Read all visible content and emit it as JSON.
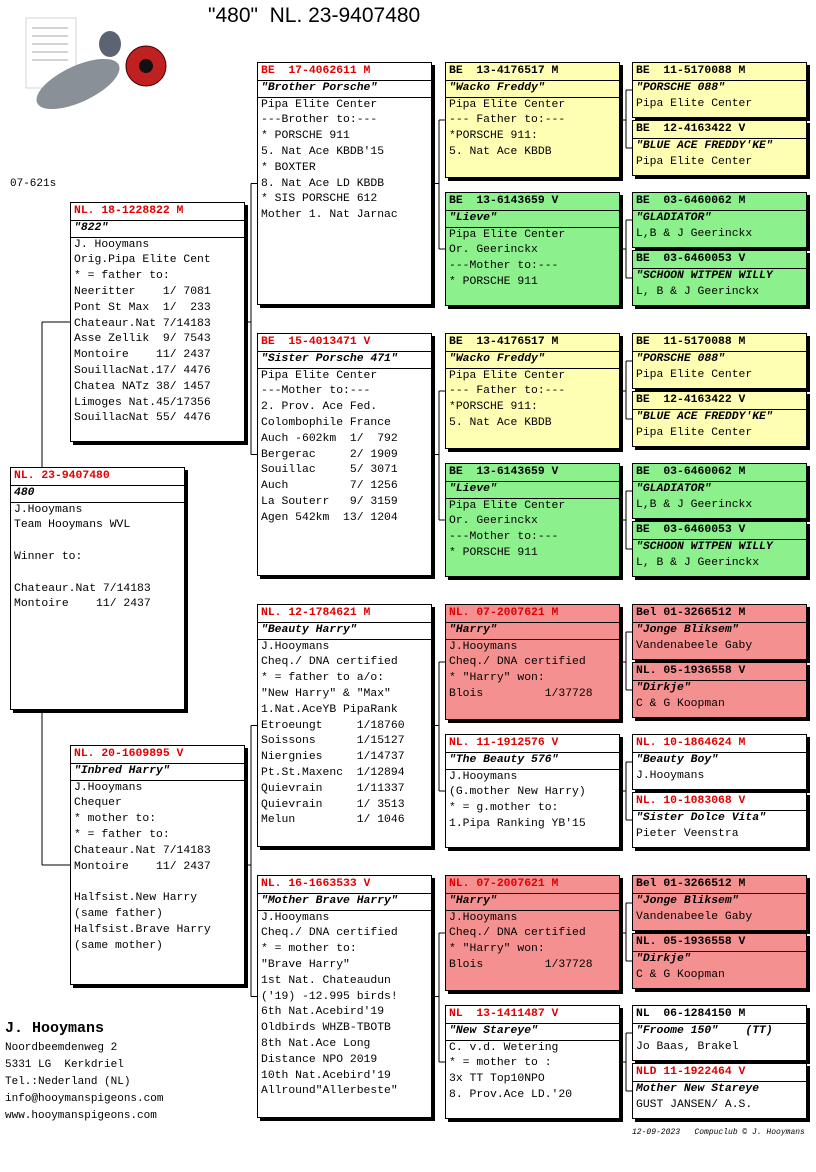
{
  "header": {
    "title": "\"480\"  NL. 23-9407480",
    "code": "07-621s"
  },
  "pedigree": {
    "subject": {
      "ring": "NL. 23-9407480",
      "header_color": "#e00000",
      "fill": "#ffffff",
      "name": "480",
      "paragraphs": [
        [
          "J.Hooymans",
          "Team Hooymans WVL"
        ],
        [
          "Winner to:"
        ],
        [
          "Chateaur.Nat 7/14183",
          "Montoire    11/ 2437"
        ]
      ]
    },
    "parents": [
      {
        "ring": "NL. 18-1228822 M",
        "header_color": "#e00000",
        "fill": "#ffffff",
        "name": "\"822\"",
        "paragraphs": [
          [
            "J. Hooymans",
            "Orig.Pipa Elite Cent",
            "* = father to:",
            "Neeritter    1/ 7081",
            "Pont St Max  1/  233",
            "Chateaur.Nat 7/14183",
            "Asse Zellik  9/ 7543",
            "Montoire    11/ 2437",
            "SouillacNat.17/ 4476",
            "Chatea NATz 38/ 1457",
            "Limoges Nat.45/17356",
            "SouillacNat 55/ 4476"
          ]
        ]
      },
      {
        "ring": "NL. 20-1609895 V",
        "header_color": "#e00000",
        "fill": "#ffffff",
        "name": "\"Inbred Harry\"",
        "paragraphs": [
          [
            "J.Hooymans",
            "Chequer",
            "* mother to:",
            "* = father to:",
            "Chateaur.Nat 7/14183",
            "Montoire    11/ 2437"
          ],
          [
            "Halfsist.New Harry",
            "(same father)",
            "Halfsist.Brave Harry",
            "(same mother)"
          ]
        ]
      }
    ],
    "grandparents": [
      {
        "ring": "BE  17-4062611 M",
        "header_color": "#e00000",
        "fill": "#ffffff",
        "name": "\"Brother Porsche\"",
        "paragraphs": [
          [
            "Pipa Elite Center",
            "---Brother to:---",
            "* PORSCHE 911",
            "5. Nat Ace KBDB'15",
            "* BOXTER",
            "8. Nat Ace LD KBDB",
            "* SIS PORSCHE 612",
            "Mother 1. Nat Jarnac"
          ]
        ]
      },
      {
        "ring": "BE  15-4013471 V",
        "header_color": "#e00000",
        "fill": "#ffffff",
        "name": "\"Sister Porsche 471\"",
        "paragraphs": [
          [
            "Pipa Elite Center",
            "---Mother to:---",
            "2. Prov. Ace Fed.",
            "Colombophile France",
            "Auch -602km  1/  792",
            "Bergerac     2/ 1909",
            "Souillac     5/ 3071",
            "Auch         7/ 1256",
            "La Souterr   9/ 3159",
            "Agen 542km  13/ 1204"
          ]
        ]
      },
      {
        "ring": "NL. 12-1784621 M",
        "header_color": "#e00000",
        "fill": "#ffffff",
        "name": "\"Beauty Harry\"",
        "paragraphs": [
          [
            "J.Hooymans",
            "Cheq./ DNA certified",
            "* = father to a/o:",
            "\"New Harry\" & \"Max\"",
            "1.Nat.AceYB PipaRank",
            "Etroeungt     1/18760",
            "Soissons      1/15127",
            "Niergnies     1/14737",
            "Pt.St.Maxenc  1/12894",
            "Quievrain     1/11337",
            "Quievrain     1/ 3513",
            "Melun         1/ 1046"
          ]
        ]
      },
      {
        "ring": "NL. 16-1663533 V",
        "header_color": "#e00000",
        "fill": "#ffffff",
        "name": "\"Mother Brave Harry\"",
        "paragraphs": [
          [
            "J.Hooymans",
            "Cheq./ DNA certified",
            "* = mother to:",
            "\"Brave Harry\"",
            "1st Nat. Chateaudun",
            "('19) -12.995 birds!",
            "6th Nat.Acebird'19",
            "Oldbirds WHZB-TBOTB",
            "8th Nat.Ace Long",
            "Distance NPO 2019",
            "10th Nat.Acebird'19",
            "Allround\"Allerbeste\""
          ]
        ]
      }
    ],
    "great_grandparents": [
      {
        "ring": "BE  13-4176517 M",
        "header_color": "#000000",
        "fill": "#ffffb4",
        "name": "\"Wacko Freddy\"",
        "paragraphs": [
          [
            "Pipa Elite Center",
            "--- Father to:---",
            "*PORSCHE 911:",
            "5. Nat Ace KBDB"
          ]
        ]
      },
      {
        "ring": "BE  13-6143659 V",
        "header_color": "#000000",
        "fill": "#8cf08c",
        "name": "\"Lieve\"",
        "paragraphs": [
          [
            "Pipa Elite Center",
            "Or. Geerinckx",
            "---Mother to:---",
            "* PORSCHE 911"
          ]
        ]
      },
      {
        "ring": "BE  13-4176517 M",
        "header_color": "#000000",
        "fill": "#ffffb4",
        "name": "\"Wacko Freddy\"",
        "paragraphs": [
          [
            "Pipa Elite Center",
            "--- Father to:---",
            "*PORSCHE 911:",
            "5. Nat Ace KBDB"
          ]
        ]
      },
      {
        "ring": "BE  13-6143659 V",
        "header_color": "#000000",
        "fill": "#8cf08c",
        "name": "\"Lieve\"",
        "paragraphs": [
          [
            "Pipa Elite Center",
            "Or. Geerinckx",
            "---Mother to:---",
            "* PORSCHE 911"
          ]
        ]
      },
      {
        "ring": "NL. 07-2007621 M",
        "header_color": "#e00000",
        "fill": "#f59090",
        "name": "\"Harry\"",
        "paragraphs": [
          [
            "J.Hooymans",
            "Cheq./ DNA certified",
            "* \"Harry\" won:",
            "Blois         1/37728"
          ]
        ]
      },
      {
        "ring": "NL. 11-1912576 V",
        "header_color": "#e00000",
        "fill": "#ffffff",
        "name": "\"The Beauty 576\"",
        "paragraphs": [
          [
            "J.Hooymans",
            "(G.mother New Harry)",
            "* = g.mother to:",
            "1.Pipa Ranking YB'15"
          ]
        ]
      },
      {
        "ring": "NL. 07-2007621 M",
        "header_color": "#e00000",
        "fill": "#f59090",
        "name": "\"Harry\"",
        "paragraphs": [
          [
            "J.Hooymans",
            "Cheq./ DNA certified",
            "* \"Harry\" won:",
            "Blois         1/37728"
          ]
        ]
      },
      {
        "ring": "NL  13-1411487 V",
        "header_color": "#e00000",
        "fill": "#ffffff",
        "name": "\"New Stareye\"",
        "paragraphs": [
          [
            "C. v.d. Wetering",
            "* = mother to :",
            "3x TT Top10NPO",
            "8. Prov.Ace LD.'20"
          ]
        ]
      }
    ],
    "great_great_grandparents": [
      {
        "ring": "BE  11-5170088 M",
        "header_color": "#000000",
        "fill": "#ffffb4",
        "name": "\"PORSCHE 088\"",
        "paragraphs": [
          [
            "Pipa Elite Center"
          ]
        ]
      },
      {
        "ring": "BE  12-4163422 V",
        "header_color": "#000000",
        "fill": "#ffffb4",
        "name": "\"BLUE ACE FREDDY'KE\"",
        "paragraphs": [
          [
            "Pipa Elite Center"
          ]
        ]
      },
      {
        "ring": "BE  03-6460062 M",
        "header_color": "#000000",
        "fill": "#8cf08c",
        "name": "\"GLADIATOR\"",
        "paragraphs": [
          [
            "L,B & J Geerinckx"
          ]
        ]
      },
      {
        "ring": "BE  03-6460053 V",
        "header_color": "#000000",
        "fill": "#8cf08c",
        "name": "\"SCHOON WITPEN WILLY",
        "paragraphs": [
          [
            "L, B & J Geerinckx"
          ]
        ]
      },
      {
        "ring": "BE  11-5170088 M",
        "header_color": "#000000",
        "fill": "#ffffb4",
        "name": "\"PORSCHE 088\"",
        "paragraphs": [
          [
            "Pipa Elite Center"
          ]
        ]
      },
      {
        "ring": "BE  12-4163422 V",
        "header_color": "#000000",
        "fill": "#ffffb4",
        "name": "\"BLUE ACE FREDDY'KE\"",
        "paragraphs": [
          [
            "Pipa Elite Center"
          ]
        ]
      },
      {
        "ring": "BE  03-6460062 M",
        "header_color": "#000000",
        "fill": "#8cf08c",
        "name": "\"GLADIATOR\"",
        "paragraphs": [
          [
            "L,B & J Geerinckx"
          ]
        ]
      },
      {
        "ring": "BE  03-6460053 V",
        "header_color": "#000000",
        "fill": "#8cf08c",
        "name": "\"SCHOON WITPEN WILLY",
        "paragraphs": [
          [
            "L, B & J Geerinckx"
          ]
        ]
      },
      {
        "ring": "Bel 01-3266512 M",
        "header_color": "#000000",
        "fill": "#f59090",
        "name": "\"Jonge Bliksem\"",
        "paragraphs": [
          [
            "Vandenabeele Gaby"
          ]
        ]
      },
      {
        "ring": "NL. 05-1936558 V",
        "header_color": "#000000",
        "fill": "#f59090",
        "name": "\"Dirkje\"",
        "paragraphs": [
          [
            "C & G Koopman"
          ]
        ]
      },
      {
        "ring": "NL. 10-1864624 M",
        "header_color": "#e00000",
        "fill": "#ffffff",
        "name": "\"Beauty Boy\"",
        "paragraphs": [
          [
            "J.Hooymans"
          ]
        ]
      },
      {
        "ring": "NL. 10-1083068 V",
        "header_color": "#e00000",
        "fill": "#ffffff",
        "name": "\"Sister Dolce Vita\"",
        "paragraphs": [
          [
            "Pieter Veenstra"
          ]
        ]
      },
      {
        "ring": "Bel 01-3266512 M",
        "header_color": "#000000",
        "fill": "#f59090",
        "name": "\"Jonge Bliksem\"",
        "paragraphs": [
          [
            "Vandenabeele Gaby"
          ]
        ]
      },
      {
        "ring": "NL. 05-1936558 V",
        "header_color": "#000000",
        "fill": "#f59090",
        "name": "\"Dirkje\"",
        "paragraphs": [
          [
            "C & G Koopman"
          ]
        ]
      },
      {
        "ring": "NL  06-1284150 M",
        "header_color": "#000000",
        "fill": "#ffffff",
        "name": "\"Froome 150\"    (TT)",
        "paragraphs": [
          [
            "Jo Baas, Brakel"
          ]
        ]
      },
      {
        "ring": "NLD 11-1922464 V",
        "header_color": "#e00000",
        "fill": "#ffffff",
        "name": "Mother New Stareye",
        "paragraphs": [
          [
            "GUST JANSEN/ A.S."
          ]
        ]
      }
    ]
  },
  "footer": {
    "owner": "J. Hooymans",
    "address": [
      "Noordbeemdenweg 2",
      "5331 LG  Kerkdriel",
      "Tel.:Nederland (NL)",
      "info@hooymanspigeons.com",
      "www.hooymanspigeons.com"
    ],
    "date": "12-09-2023",
    "credit": "Compuclub © J. Hooymans"
  }
}
